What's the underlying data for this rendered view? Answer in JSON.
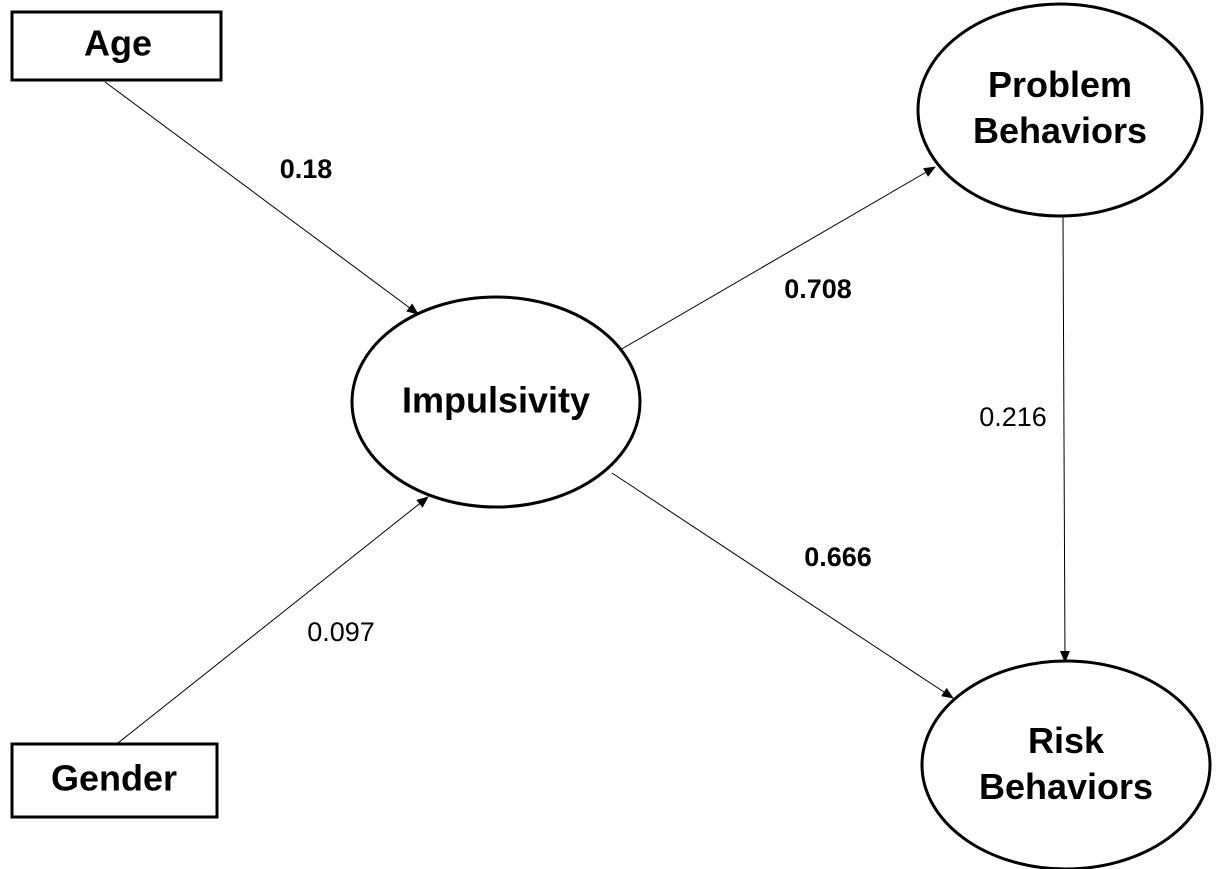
{
  "nodes": [
    {
      "label": "Age"
    },
    {
      "label": "Gender"
    },
    {
      "label": "Impulsivity"
    },
    {
      "label": "Problem Behaviors"
    },
    {
      "label": "Risk Behaviors"
    }
  ],
  "edges": [
    {
      "label": "0.18"
    },
    {
      "label": "0.097"
    },
    {
      "label": "0.708"
    },
    {
      "label": "0.666"
    },
    {
      "label": "0.216"
    }
  ]
}
